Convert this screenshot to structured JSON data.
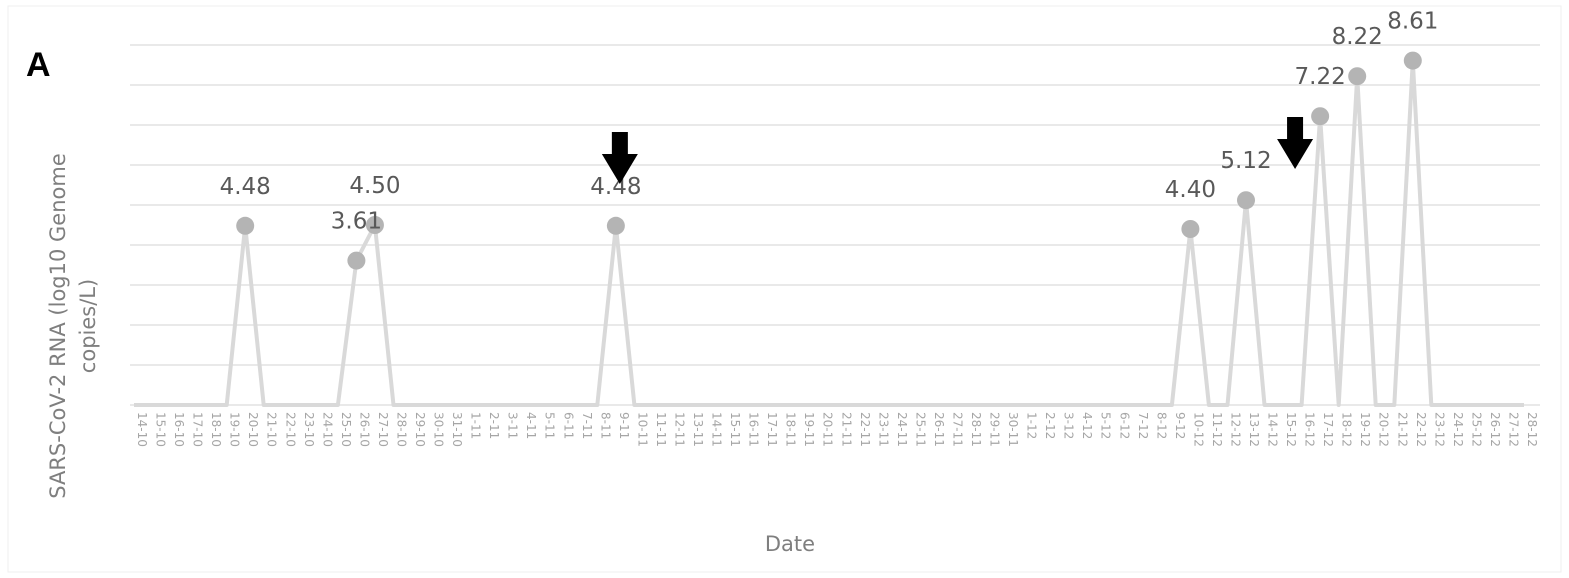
{
  "chart_data": {
    "type": "line",
    "panel_label": "A",
    "xlabel": "Date",
    "ylabel_lines": [
      "SARS-CoV-2 RNA (log10 Genome",
      "copies/L)"
    ],
    "ylim": [
      0,
      9
    ],
    "y_gridlines": 9,
    "grid": true,
    "legend": "none",
    "colors": {
      "line": "#d9d9d9",
      "point": "#b4b4b4",
      "grid": "#dcdcdc",
      "arrow": "#000000"
    },
    "x": [
      "14-10",
      "15-10",
      "16-10",
      "17-10",
      "18-10",
      "19-10",
      "20-10",
      "21-10",
      "22-10",
      "23-10",
      "24-10",
      "25-10",
      "26-10",
      "27-10",
      "28-10",
      "29-10",
      "30-10",
      "31-10",
      "1-11",
      "2-11",
      "3-11",
      "4-11",
      "5-11",
      "6-11",
      "7-11",
      "8-11",
      "9-11",
      "10-11",
      "11-11",
      "12-11",
      "13-11",
      "14-11",
      "15-11",
      "16-11",
      "17-11",
      "18-11",
      "19-11",
      "20-11",
      "21-11",
      "22-11",
      "23-11",
      "24-11",
      "25-11",
      "26-11",
      "27-11",
      "28-11",
      "29-11",
      "30-11",
      "1-12",
      "2-12",
      "3-12",
      "4-12",
      "5-12",
      "6-12",
      "7-12",
      "8-12",
      "9-12",
      "10-12",
      "11-12",
      "12-12",
      "13-12",
      "14-12",
      "15-12",
      "16-12",
      "17-12",
      "18-12",
      "19-12",
      "20-12",
      "21-12",
      "22-12",
      "23-12",
      "24-12",
      "25-12",
      "26-12",
      "27-12",
      "28-12"
    ],
    "series": [
      {
        "values": [
          0,
          0,
          0,
          0,
          0,
          0,
          4.48,
          0,
          0,
          0,
          0,
          0,
          3.61,
          4.5,
          0,
          0,
          0,
          0,
          0,
          0,
          0,
          0,
          0,
          0,
          0,
          0,
          4.48,
          0,
          0,
          0,
          0,
          0,
          0,
          0,
          0,
          0,
          0,
          0,
          0,
          0,
          0,
          0,
          0,
          0,
          0,
          0,
          0,
          0,
          0,
          0,
          0,
          0,
          0,
          0,
          0,
          0,
          0,
          4.4,
          0,
          0,
          5.12,
          0,
          0,
          0,
          7.22,
          0,
          8.22,
          0,
          0,
          8.61,
          0,
          0,
          0,
          0,
          0,
          0
        ]
      }
    ],
    "data_labels": [
      {
        "x": "20-10",
        "text": "4.48"
      },
      {
        "x": "26-10",
        "text": "3.61"
      },
      {
        "x": "27-10",
        "text": "4.50"
      },
      {
        "x": "9-11",
        "text": "4.48"
      },
      {
        "x": "10-12",
        "text": "4.40"
      },
      {
        "x": "13-12",
        "text": "5.12"
      },
      {
        "x": "17-12",
        "text": "7.22"
      },
      {
        "x": "19-12",
        "text": "8.22"
      },
      {
        "x": "22-12",
        "text": "8.61"
      }
    ],
    "annotations": [
      {
        "type": "down-arrow",
        "x": "9-11"
      },
      {
        "type": "down-arrow",
        "x": "15-12"
      }
    ]
  }
}
